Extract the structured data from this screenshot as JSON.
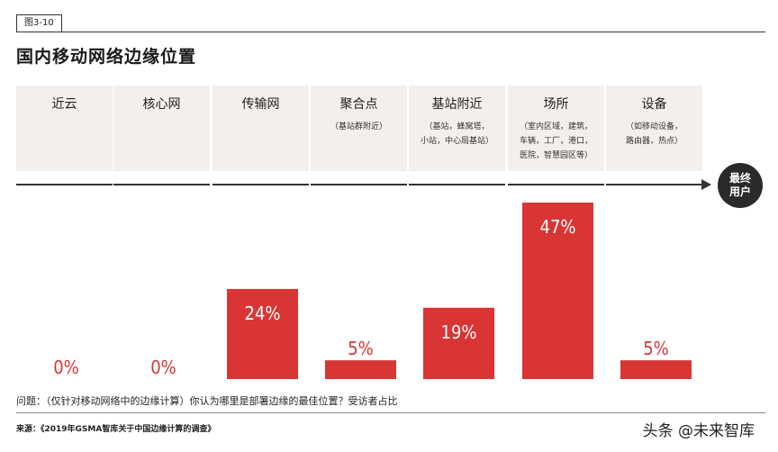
{
  "figure_tag": "图3-10",
  "title": "国内移动网络边缘位置",
  "end_user": [
    "最终",
    "用户"
  ],
  "locations": [
    {
      "name": "近云",
      "sub": ""
    },
    {
      "name": "核心网",
      "sub": ""
    },
    {
      "name": "传输网",
      "sub": ""
    },
    {
      "name": "聚合点",
      "sub": "（基站群附近）"
    },
    {
      "name": "基站附近",
      "sub": "（基站，蜂窝塔，\n小站，中心局基站）"
    },
    {
      "name": "场所",
      "sub": "（室内区域，建筑，\n车辆，工厂，港口，\n医院，智慧园区等）"
    },
    {
      "name": "设备",
      "sub": "（如移动设备，\n路由器，热点）"
    }
  ],
  "chart_data": {
    "type": "bar",
    "categories": [
      "近云",
      "核心网",
      "传输网",
      "聚合点",
      "基站附近",
      "场所",
      "设备"
    ],
    "values": [
      0,
      0,
      24,
      5,
      19,
      47,
      5
    ],
    "labels": [
      "0%",
      "0%",
      "24%",
      "5%",
      "19%",
      "47%",
      "5%"
    ],
    "unit": "%",
    "ylim": [
      0,
      47
    ],
    "bar_color": "#d93535",
    "zero_label_color": "#d93535",
    "grid": false
  },
  "question": "问题：（仅针对移动网络中的边缘计算）你认为哪里是部署边缘的最佳位置？受访者占比",
  "source": "来源：《2019年GSMA智库关于中国边缘计算的调查》",
  "watermark": "头条 @未来智库"
}
